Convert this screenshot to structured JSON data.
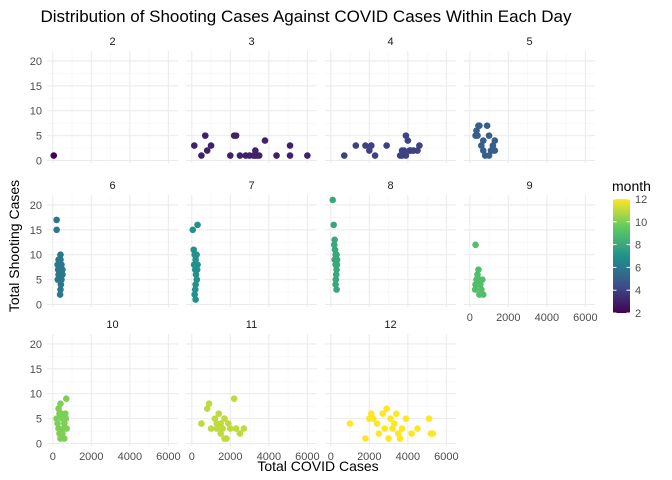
{
  "chart_data": {
    "type": "scatter",
    "title": "Distribution of Shooting Cases Against COVID Cases Within Each Day",
    "xlabel": "Total COVID Cases",
    "ylabel": "Total Shooting Cases",
    "xlim": [
      -300,
      6500
    ],
    "ylim": [
      -0.5,
      22
    ],
    "x_ticks": [
      0,
      2000,
      4000,
      6000
    ],
    "y_ticks": [
      0,
      5,
      10,
      15,
      20
    ],
    "grid": true,
    "facet_by": "month",
    "facet_columns": 4,
    "legend": {
      "title": "month",
      "position": "right",
      "min": 2,
      "max": 12,
      "ticks": [
        2,
        4,
        6,
        8,
        10,
        12
      ],
      "colormap": "viridis"
    },
    "colors": {
      "background": "#ffffff",
      "grid_major": "#ebebeb",
      "grid_minor": "#f5f5f5",
      "text": "#000000",
      "tick_text": "#4d4d4d"
    },
    "panels": [
      {
        "label": "2",
        "month": 2,
        "points": [
          [
            50,
            1
          ]
        ]
      },
      {
        "label": "3",
        "month": 3,
        "points": [
          [
            130,
            3
          ],
          [
            500,
            1
          ],
          [
            700,
            5
          ],
          [
            1000,
            3
          ],
          [
            800,
            2
          ],
          [
            2000,
            1
          ],
          [
            2300,
            5
          ],
          [
            2200,
            5
          ],
          [
            2500,
            1
          ],
          [
            2800,
            1
          ],
          [
            3000,
            1
          ],
          [
            3200,
            1
          ],
          [
            3300,
            2
          ],
          [
            3300,
            1
          ],
          [
            3400,
            1
          ],
          [
            3500,
            1
          ],
          [
            3800,
            4
          ],
          [
            4400,
            1
          ],
          [
            5100,
            3
          ],
          [
            5100,
            1
          ],
          [
            6000,
            1
          ]
        ]
      },
      {
        "label": "4",
        "month": 4,
        "points": [
          [
            700,
            1
          ],
          [
            1300,
            3
          ],
          [
            1800,
            3
          ],
          [
            2000,
            2
          ],
          [
            2100,
            3
          ],
          [
            2100,
            3
          ],
          [
            2300,
            1
          ],
          [
            2900,
            3
          ],
          [
            3600,
            1
          ],
          [
            3700,
            1
          ],
          [
            3700,
            2
          ],
          [
            3800,
            2
          ],
          [
            3900,
            5
          ],
          [
            3900,
            1
          ],
          [
            4000,
            4
          ],
          [
            4100,
            2
          ],
          [
            4100,
            2
          ],
          [
            4200,
            2
          ],
          [
            4300,
            2
          ],
          [
            4500,
            2
          ],
          [
            4600,
            3
          ]
        ]
      },
      {
        "label": "5",
        "month": 5,
        "points": [
          [
            300,
            5
          ],
          [
            350,
            6
          ],
          [
            400,
            5
          ],
          [
            450,
            7
          ],
          [
            500,
            7
          ],
          [
            600,
            3
          ],
          [
            700,
            4
          ],
          [
            700,
            2
          ],
          [
            800,
            1
          ],
          [
            900,
            7
          ],
          [
            1000,
            5
          ],
          [
            1000,
            1
          ],
          [
            1100,
            2
          ],
          [
            1200,
            3
          ],
          [
            1200,
            2
          ],
          [
            1300,
            4
          ],
          [
            1300,
            2
          ]
        ]
      },
      {
        "label": "6",
        "month": 6,
        "points": [
          [
            200,
            17
          ],
          [
            200,
            15
          ],
          [
            300,
            9
          ],
          [
            250,
            8
          ],
          [
            280,
            7
          ],
          [
            300,
            6
          ],
          [
            350,
            5
          ],
          [
            260,
            5
          ],
          [
            400,
            10
          ],
          [
            400,
            9
          ],
          [
            450,
            8
          ],
          [
            500,
            7
          ],
          [
            500,
            6
          ],
          [
            450,
            5
          ],
          [
            420,
            4
          ],
          [
            400,
            3
          ],
          [
            380,
            2
          ],
          [
            300,
            7
          ],
          [
            350,
            9
          ]
        ]
      },
      {
        "label": "7",
        "month": 7,
        "points": [
          [
            50,
            15
          ],
          [
            300,
            16
          ],
          [
            100,
            11
          ],
          [
            150,
            10
          ],
          [
            200,
            9
          ],
          [
            120,
            8
          ],
          [
            180,
            7
          ],
          [
            220,
            6
          ],
          [
            260,
            5
          ],
          [
            200,
            4
          ],
          [
            180,
            3
          ],
          [
            150,
            2
          ],
          [
            200,
            1
          ],
          [
            300,
            8
          ],
          [
            280,
            7
          ],
          [
            250,
            10
          ]
        ]
      },
      {
        "label": "8",
        "month": 8,
        "points": [
          [
            100,
            21
          ],
          [
            150,
            16
          ],
          [
            200,
            13
          ],
          [
            180,
            12
          ],
          [
            220,
            11
          ],
          [
            250,
            10
          ],
          [
            200,
            9
          ],
          [
            250,
            8
          ],
          [
            300,
            7
          ],
          [
            280,
            6
          ],
          [
            260,
            5
          ],
          [
            250,
            4
          ],
          [
            300,
            3
          ],
          [
            320,
            8
          ],
          [
            330,
            9
          ],
          [
            300,
            10
          ]
        ]
      },
      {
        "label": "9",
        "month": 9,
        "points": [
          [
            300,
            12
          ],
          [
            400,
            6
          ],
          [
            450,
            7
          ],
          [
            350,
            5
          ],
          [
            300,
            4
          ],
          [
            280,
            3
          ],
          [
            500,
            5
          ],
          [
            550,
            4
          ],
          [
            600,
            3
          ],
          [
            500,
            2
          ],
          [
            650,
            5
          ],
          [
            700,
            2
          ],
          [
            400,
            4
          ]
        ]
      },
      {
        "label": "10",
        "month": 10,
        "points": [
          [
            200,
            5
          ],
          [
            300,
            7
          ],
          [
            350,
            6
          ],
          [
            400,
            8
          ],
          [
            250,
            4
          ],
          [
            300,
            3
          ],
          [
            350,
            2
          ],
          [
            400,
            1
          ],
          [
            450,
            6
          ],
          [
            500,
            5
          ],
          [
            550,
            3
          ],
          [
            500,
            2
          ],
          [
            600,
            4
          ],
          [
            650,
            6
          ],
          [
            600,
            1
          ],
          [
            700,
            9
          ],
          [
            680,
            5
          ],
          [
            720,
            3
          ]
        ]
      },
      {
        "label": "11",
        "month": 11,
        "points": [
          [
            500,
            4
          ],
          [
            800,
            7
          ],
          [
            900,
            8
          ],
          [
            1000,
            3
          ],
          [
            1200,
            5
          ],
          [
            1300,
            4
          ],
          [
            1400,
            6
          ],
          [
            1500,
            4
          ],
          [
            1500,
            2
          ],
          [
            1600,
            3
          ],
          [
            1700,
            5
          ],
          [
            1700,
            1
          ],
          [
            1800,
            1
          ],
          [
            1900,
            4
          ],
          [
            2000,
            3
          ],
          [
            2200,
            9
          ],
          [
            2300,
            3
          ],
          [
            2500,
            2
          ],
          [
            2700,
            3
          ],
          [
            1300,
            3
          ]
        ]
      },
      {
        "label": "12",
        "month": 12,
        "points": [
          [
            1000,
            4
          ],
          [
            1800,
            1
          ],
          [
            2000,
            5
          ],
          [
            2100,
            6
          ],
          [
            2200,
            5
          ],
          [
            2400,
            4
          ],
          [
            2500,
            2
          ],
          [
            2700,
            6
          ],
          [
            2800,
            3
          ],
          [
            2900,
            7
          ],
          [
            3000,
            1
          ],
          [
            3100,
            5
          ],
          [
            3200,
            3
          ],
          [
            3300,
            4
          ],
          [
            3400,
            6
          ],
          [
            3500,
            2
          ],
          [
            3600,
            1
          ],
          [
            3700,
            3
          ],
          [
            3900,
            5
          ],
          [
            4200,
            2
          ],
          [
            4500,
            3
          ],
          [
            5100,
            5
          ],
          [
            5200,
            2
          ],
          [
            5300,
            2
          ]
        ]
      }
    ]
  }
}
